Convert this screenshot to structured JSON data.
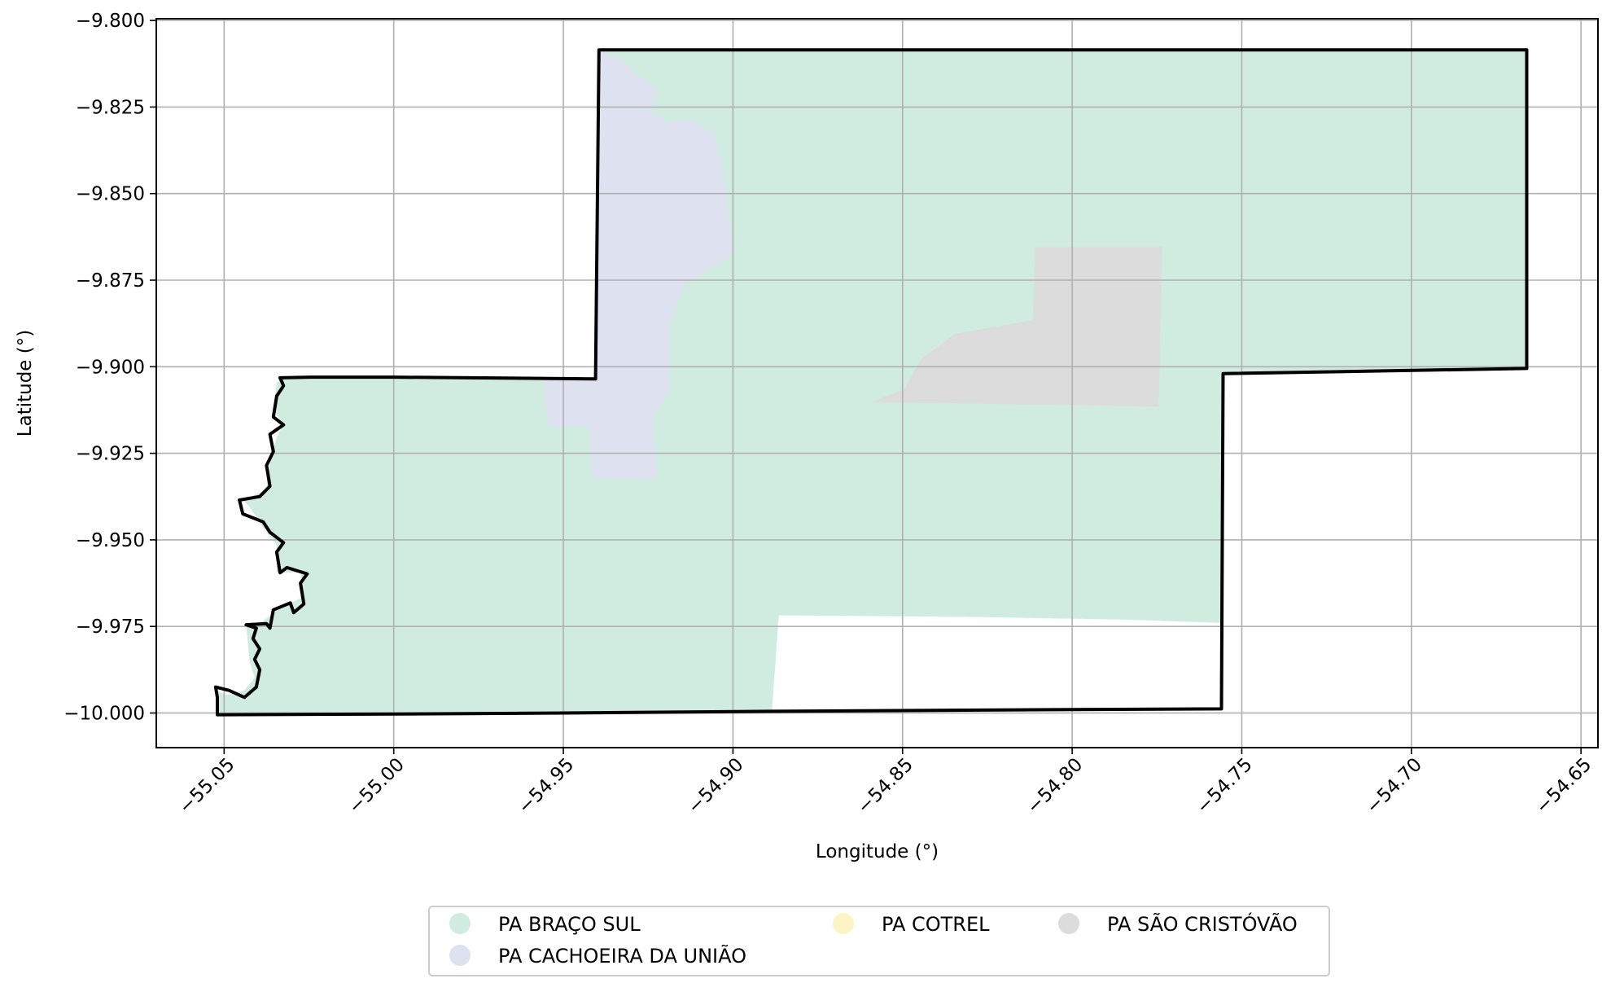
{
  "chart_data": {
    "type": "map",
    "xlabel": "Longitude (°)",
    "ylabel": "Latitude (°)",
    "xlim": [
      -55.07,
      -54.645
    ],
    "ylim": [
      -10.01,
      -9.7995
    ],
    "xticks": [
      -55.05,
      -55.0,
      -54.95,
      -54.9,
      -54.85,
      -54.8,
      -54.75,
      -54.7,
      -54.65
    ],
    "xtick_labels": [
      "−55.05",
      "−55.00",
      "−54.95",
      "−54.90",
      "−54.85",
      "−54.80",
      "−54.75",
      "−54.70",
      "−54.65"
    ],
    "yticks": [
      -9.8,
      -9.825,
      -9.85,
      -9.875,
      -9.9,
      -9.925,
      -9.95,
      -9.975,
      -10.0
    ],
    "ytick_labels": [
      "−9.800",
      "−9.825",
      "−9.850",
      "−9.875",
      "−9.900",
      "−9.925",
      "−9.950",
      "−9.975",
      "−10.000"
    ],
    "grid": true,
    "legend_position": "bottom-center",
    "series": [
      {
        "name": "PA BRAÇO SUL",
        "color": "#d0ebdf",
        "polygon": [
          [
            -55.052,
            -10.0002
          ],
          [
            -55.0525,
            -9.9935
          ],
          [
            -55.049,
            -9.9948
          ],
          [
            -55.044,
            -9.9935
          ],
          [
            -55.041,
            -9.9898
          ],
          [
            -55.0425,
            -9.9852
          ],
          [
            -55.0435,
            -9.9745
          ],
          [
            -55.0395,
            -9.9742
          ],
          [
            -55.0335,
            -9.9695
          ],
          [
            -55.0265,
            -9.9665
          ],
          [
            -55.0275,
            -9.9595
          ],
          [
            -55.0345,
            -9.9595
          ],
          [
            -55.0345,
            -9.9515
          ],
          [
            -55.0385,
            -9.9465
          ],
          [
            -55.0425,
            -9.9405
          ],
          [
            -55.0445,
            -9.9385
          ],
          [
            -55.0375,
            -9.9355
          ],
          [
            -55.0365,
            -9.9275
          ],
          [
            -55.0345,
            -9.9205
          ],
          [
            -55.0325,
            -9.9165
          ],
          [
            -55.0355,
            -9.9125
          ],
          [
            -55.0345,
            -9.9045
          ],
          [
            -55.0325,
            -9.9032
          ],
          [
            -54.955,
            -9.9035
          ],
          [
            -54.9405,
            -9.9035
          ],
          [
            -54.9395,
            -9.8085
          ],
          [
            -54.666,
            -9.8085
          ],
          [
            -54.666,
            -9.9005
          ],
          [
            -54.7555,
            -9.902
          ],
          [
            -54.7555,
            -9.974
          ],
          [
            -54.785,
            -9.973
          ],
          [
            -54.8325,
            -9.9722
          ],
          [
            -54.8865,
            -9.9718
          ],
          [
            -54.8885,
            -9.9995
          ],
          [
            -54.95,
            -10.0
          ],
          [
            -55.0,
            -10.0002
          ]
        ]
      },
      {
        "name": "PA CACHOEIRA DA UNIÃO",
        "color": "#dee2f0",
        "polygon": [
          [
            -54.9395,
            -9.8085
          ],
          [
            -54.932,
            -9.812
          ],
          [
            -54.929,
            -9.8155
          ],
          [
            -54.9255,
            -9.8175
          ],
          [
            -54.922,
            -9.8205
          ],
          [
            -54.9245,
            -9.826
          ],
          [
            -54.9195,
            -9.8295
          ],
          [
            -54.9135,
            -9.8285
          ],
          [
            -54.9055,
            -9.8325
          ],
          [
            -54.903,
            -9.8425
          ],
          [
            -54.9,
            -9.8675
          ],
          [
            -54.9145,
            -9.8765
          ],
          [
            -54.9185,
            -9.8875
          ],
          [
            -54.9185,
            -9.9065
          ],
          [
            -54.9235,
            -9.9145
          ],
          [
            -54.9225,
            -9.9325
          ],
          [
            -54.9415,
            -9.9322
          ],
          [
            -54.9425,
            -9.9172
          ],
          [
            -54.9545,
            -9.9172
          ],
          [
            -54.956,
            -9.9035
          ],
          [
            -54.9405,
            -9.9035
          ]
        ]
      },
      {
        "name": "PA COTREL",
        "color": "#fdf4c5",
        "polygon": []
      },
      {
        "name": "PA SÃO CRISTÓVÃO",
        "color": "#dcdcdc",
        "polygon": [
          [
            -54.811,
            -9.8655
          ],
          [
            -54.7735,
            -9.8655
          ],
          [
            -54.7745,
            -9.9115
          ],
          [
            -54.859,
            -9.9102
          ],
          [
            -54.8495,
            -9.9065
          ],
          [
            -54.8445,
            -9.8978
          ],
          [
            -54.8345,
            -9.8905
          ],
          [
            -54.8115,
            -9.8865
          ]
        ]
      }
    ],
    "outline": {
      "color": "#000000",
      "polygon": [
        [
          -55.052,
          -10.0005
        ],
        [
          -55.052,
          -9.9955
        ],
        [
          -55.0525,
          -9.9925
        ],
        [
          -55.0485,
          -9.9935
        ],
        [
          -55.044,
          -9.9955
        ],
        [
          -55.0405,
          -9.9925
        ],
        [
          -55.0395,
          -9.9875
        ],
        [
          -55.041,
          -9.9845
        ],
        [
          -55.0395,
          -9.9815
        ],
        [
          -55.0415,
          -9.9785
        ],
        [
          -55.0405,
          -9.9755
        ],
        [
          -55.0435,
          -9.9745
        ],
        [
          -55.0375,
          -9.9742
        ],
        [
          -55.0365,
          -9.9755
        ],
        [
          -55.0355,
          -9.9702
        ],
        [
          -55.0305,
          -9.9682
        ],
        [
          -55.0295,
          -9.971
        ],
        [
          -55.0265,
          -9.9685
        ],
        [
          -55.0275,
          -9.9625
        ],
        [
          -55.0255,
          -9.9598
        ],
        [
          -55.0315,
          -9.958
        ],
        [
          -55.0335,
          -9.9595
        ],
        [
          -55.0345,
          -9.9535
        ],
        [
          -55.0325,
          -9.9508
        ],
        [
          -55.0365,
          -9.9478
        ],
        [
          -55.0385,
          -9.9448
        ],
        [
          -55.0445,
          -9.9425
        ],
        [
          -55.0455,
          -9.9385
        ],
        [
          -55.0395,
          -9.9375
        ],
        [
          -55.0365,
          -9.9345
        ],
        [
          -55.0375,
          -9.9285
        ],
        [
          -55.0355,
          -9.9245
        ],
        [
          -55.0365,
          -9.9195
        ],
        [
          -55.0325,
          -9.9168
        ],
        [
          -55.0355,
          -9.9145
        ],
        [
          -55.0345,
          -9.9085
        ],
        [
          -55.0325,
          -9.9055
        ],
        [
          -55.0335,
          -9.9032
        ],
        [
          -55.0245,
          -9.903
        ],
        [
          -55.0,
          -9.903
        ],
        [
          -54.9405,
          -9.9035
        ],
        [
          -54.9395,
          -9.8085
        ],
        [
          -54.666,
          -9.8085
        ],
        [
          -54.666,
          -9.9005
        ],
        [
          -54.7555,
          -9.902
        ],
        [
          -54.756,
          -9.9988
        ],
        [
          -54.8,
          -9.999
        ],
        [
          -54.8885,
          -9.9995
        ],
        [
          -54.95,
          -10.0
        ],
        [
          -55.0,
          -10.0003
        ]
      ]
    }
  }
}
